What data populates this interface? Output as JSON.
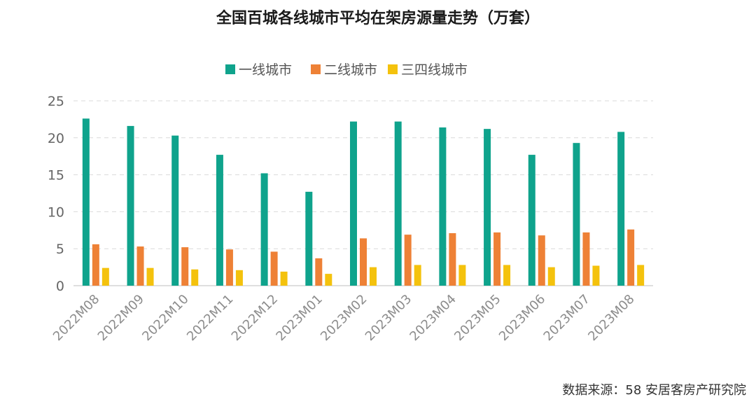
{
  "chart_data": {
    "type": "bar",
    "title": "全国百城各线城市平均在架房源量走势（万套）",
    "xlabel": "",
    "ylabel": "",
    "ylim": [
      0,
      25
    ],
    "yticks": [
      0,
      5,
      10,
      15,
      20,
      25
    ],
    "grid": true,
    "legend_position": "top-center",
    "categories": [
      "2022M08",
      "2022M09",
      "2022M10",
      "2022M11",
      "2022M12",
      "2023M01",
      "2023M02",
      "2023M03",
      "2023M04",
      "2023M05",
      "2023M06",
      "2023M07",
      "2023M08"
    ],
    "series": [
      {
        "name": "一线城市",
        "color": "#0fa38c",
        "values": [
          22.6,
          21.6,
          20.3,
          17.7,
          15.2,
          12.7,
          22.2,
          22.2,
          21.4,
          21.2,
          17.7,
          19.3,
          20.8
        ]
      },
      {
        "name": "二线城市",
        "color": "#ee8136",
        "values": [
          5.6,
          5.3,
          5.2,
          4.9,
          4.6,
          3.7,
          6.4,
          6.9,
          7.1,
          7.2,
          6.8,
          7.2,
          7.6
        ]
      },
      {
        "name": "三四线城市",
        "color": "#f4c20d",
        "values": [
          2.4,
          2.4,
          2.2,
          2.1,
          1.9,
          1.6,
          2.5,
          2.8,
          2.8,
          2.8,
          2.5,
          2.7,
          2.8
        ]
      }
    ]
  },
  "source": "数据来源：58 安居客房产研究院"
}
